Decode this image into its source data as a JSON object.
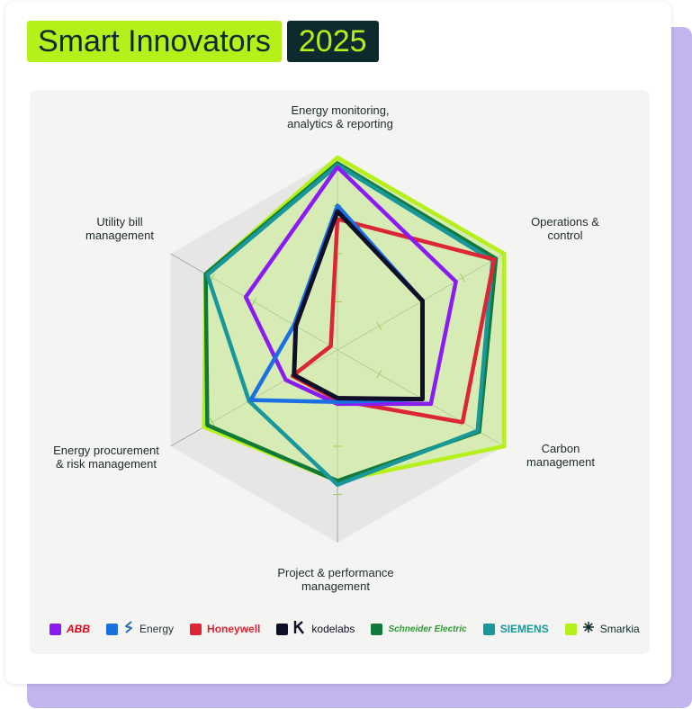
{
  "header": {
    "title": "Smart Innovators",
    "year": "2025"
  },
  "chart_data": {
    "type": "radar",
    "axes": [
      "Energy monitoring, analytics & reporting",
      "Operations & control",
      "Carbon management",
      "Project & performance management",
      "Energy procurement & risk management",
      "Utility bill management"
    ],
    "axis_labels": [
      [
        "Energy monitoring,",
        "analytics & reporting"
      ],
      [
        "Operations &",
        "control"
      ],
      [
        "Carbon",
        "management"
      ],
      [
        "Project & performance",
        "management"
      ],
      [
        "Energy procurement",
        "& risk management"
      ],
      [
        "Utility bill",
        "management"
      ]
    ],
    "max": 100,
    "series": [
      {
        "name": "ABB",
        "color": "#8a1bf2",
        "values": [
          95,
          71,
          56,
          28,
          31,
          55
        ]
      },
      {
        "name": "Energy",
        "color": "#1b6fe0",
        "values": [
          75,
          51,
          51,
          27,
          52,
          26
        ]
      },
      {
        "name": "Honeywell",
        "color": "#dc2536",
        "values": [
          68,
          94,
          75,
          26,
          27,
          4
        ]
      },
      {
        "name": "kodelabs",
        "color": "#0f0f2a",
        "values": [
          72,
          51,
          51,
          25,
          26,
          25
        ]
      },
      {
        "name": "Schneider Electric",
        "color": "#117a3b",
        "values": [
          97,
          95,
          85,
          68,
          78,
          79
        ]
      },
      {
        "name": "SIEMENS",
        "color": "#19979a",
        "values": [
          96,
          93,
          84,
          70,
          53,
          78
        ]
      },
      {
        "name": "Smarkia",
        "color": "#b6f01a",
        "values": [
          100,
          100,
          100,
          68,
          80,
          79
        ]
      }
    ]
  }
}
